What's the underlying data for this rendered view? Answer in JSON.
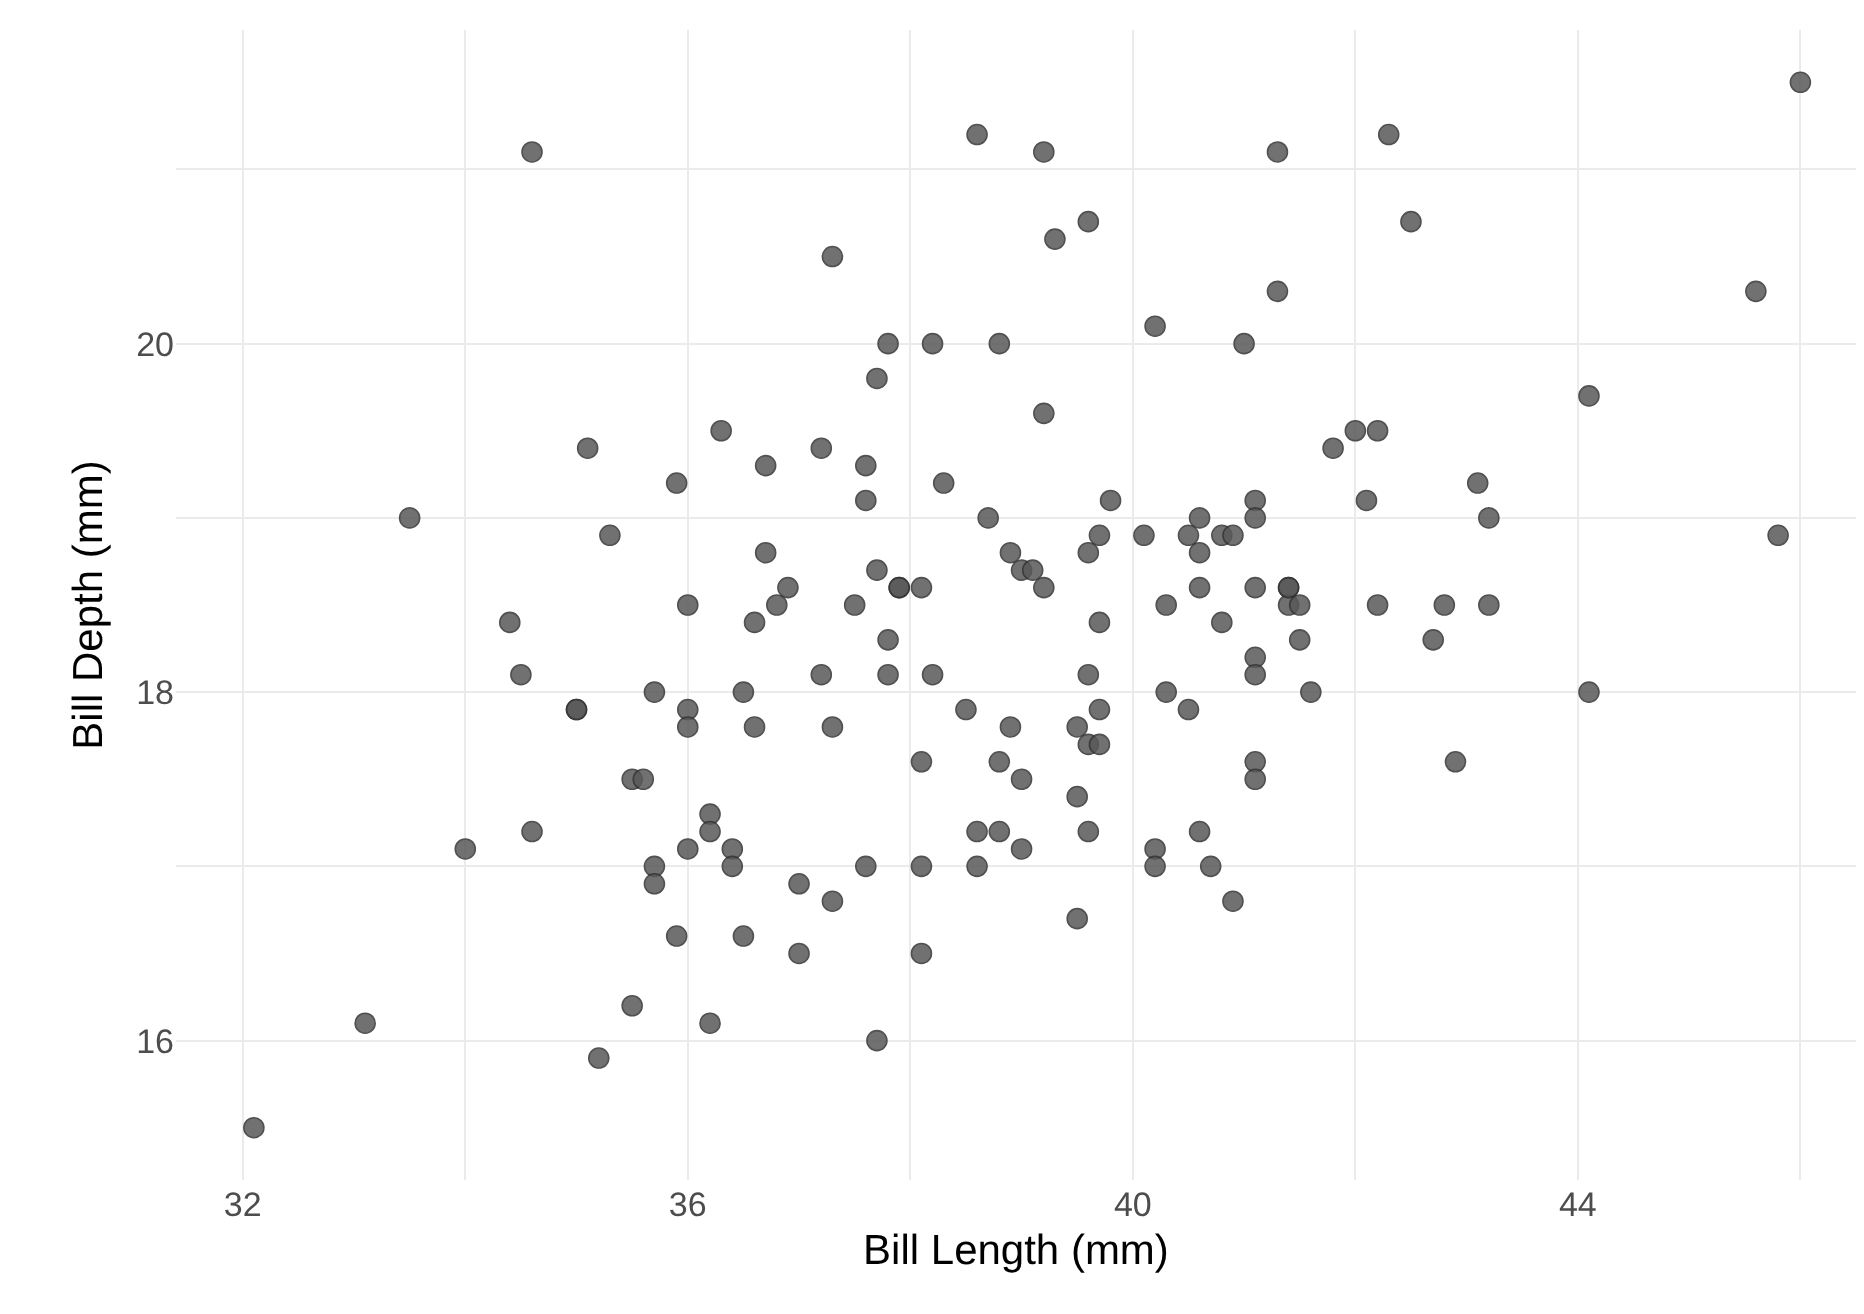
{
  "chart_data": {
    "type": "scatter",
    "xlabel": "Bill Length (mm)",
    "ylabel": "Bill Depth (mm)",
    "xlim": [
      31.4,
      46.5
    ],
    "ylim": [
      15.2,
      21.8
    ],
    "xticks": [
      32,
      {
        "value": 34,
        "label": null
      },
      36,
      {
        "value": 38,
        "label": null
      },
      40,
      {
        "value": 42,
        "label": null
      },
      44,
      {
        "value": 46,
        "label": null
      }
    ],
    "yticks": [
      16,
      {
        "value": 17,
        "label": null
      },
      18,
      {
        "value": 19,
        "label": null
      },
      20,
      {
        "value": 21,
        "label": null
      }
    ],
    "grid": true,
    "marker": "circle",
    "series": [
      {
        "color": "#595959",
        "x": [
          34.6,
          35.1,
          36.3,
          35.9,
          33.5,
          35.3,
          36.0,
          34.4,
          34.5,
          35.7,
          38.6,
          39.2,
          41.3,
          39.6,
          39.3,
          37.3,
          41.3,
          40.2,
          37.8,
          38.2,
          38.8,
          41.0,
          37.7,
          39.2,
          36.7,
          37.2,
          37.6,
          37.6,
          38.3,
          39.8,
          41.1,
          38.7,
          40.6,
          41.1,
          39.7,
          40.1,
          40.5,
          40.8,
          40.9,
          39.6,
          40.6,
          36.7,
          38.9,
          39.0,
          39.1,
          37.7,
          36.9,
          37.9,
          37.9,
          38.1,
          39.2,
          40.6,
          41.1,
          41.4,
          36.8,
          37.5,
          40.3,
          41.4,
          41.5,
          36.6,
          39.7,
          40.8,
          37.8,
          41.1,
          41.5,
          37.2,
          37.8,
          38.2,
          39.6,
          41.1,
          46.0,
          42.3,
          42.5,
          45.6,
          44.1,
          42.0,
          42.2,
          41.8,
          43.1,
          42.1,
          43.2,
          45.8,
          41.4,
          42.2,
          42.8,
          43.2,
          42.7,
          41.6,
          44.1,
          42.9,
          36.5,
          35.0,
          35.0,
          36.0,
          36.0,
          35.5,
          35.6,
          36.2,
          36.2,
          34.6,
          34.0,
          36.0,
          36.4,
          35.7,
          35.7,
          36.4,
          35.9,
          36.5,
          35.5,
          36.2,
          33.1,
          35.2,
          32.1,
          40.3,
          38.5,
          39.7,
          40.5,
          36.6,
          37.3,
          38.9,
          39.5,
          39.6,
          39.7,
          38.1,
          38.8,
          41.1,
          39.0,
          41.1,
          39.5,
          38.6,
          38.8,
          39.6,
          40.6,
          39.0,
          40.2,
          37.6,
          38.1,
          38.6,
          40.2,
          40.7,
          37.0,
          37.3,
          40.9,
          39.5,
          37.0,
          38.1,
          37.7
        ],
        "values": [
          21.1,
          19.4,
          19.5,
          19.2,
          19.0,
          18.9,
          18.5,
          18.4,
          18.1,
          18.0,
          21.2,
          21.1,
          21.1,
          20.7,
          20.6,
          20.5,
          20.3,
          20.1,
          20.0,
          20.0,
          20.0,
          20.0,
          19.8,
          19.6,
          19.3,
          19.4,
          19.3,
          19.1,
          19.2,
          19.1,
          19.1,
          19.0,
          19.0,
          19.0,
          18.9,
          18.9,
          18.9,
          18.9,
          18.9,
          18.8,
          18.8,
          18.8,
          18.8,
          18.7,
          18.7,
          18.7,
          18.6,
          18.6,
          18.6,
          18.6,
          18.6,
          18.6,
          18.6,
          18.6,
          18.5,
          18.5,
          18.5,
          18.5,
          18.5,
          18.4,
          18.4,
          18.4,
          18.3,
          18.2,
          18.3,
          18.1,
          18.1,
          18.1,
          18.1,
          18.1,
          21.5,
          21.2,
          20.7,
          20.3,
          19.7,
          19.5,
          19.5,
          19.4,
          19.2,
          19.1,
          19.0,
          18.9,
          18.6,
          18.5,
          18.5,
          18.5,
          18.3,
          18.0,
          18.0,
          17.6,
          18.0,
          17.9,
          17.9,
          17.9,
          17.8,
          17.5,
          17.5,
          17.3,
          17.2,
          17.2,
          17.1,
          17.1,
          17.1,
          17.0,
          16.9,
          17.0,
          16.6,
          16.6,
          16.2,
          16.1,
          16.1,
          15.9,
          15.5,
          18.0,
          17.9,
          17.9,
          17.9,
          17.8,
          17.8,
          17.8,
          17.8,
          17.7,
          17.7,
          17.6,
          17.6,
          17.6,
          17.5,
          17.5,
          17.4,
          17.2,
          17.2,
          17.2,
          17.2,
          17.1,
          17.1,
          17.0,
          17.0,
          17.0,
          17.0,
          17.0,
          16.9,
          16.8,
          16.8,
          16.7,
          16.5,
          16.5,
          16.0
        ]
      }
    ]
  }
}
